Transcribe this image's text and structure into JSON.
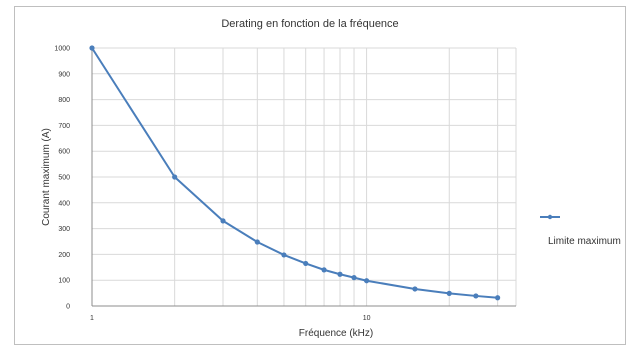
{
  "chart_data": {
    "type": "line",
    "title": "Derating en fonction de la fréquence",
    "xlabel": "Fréquence (kHz)",
    "ylabel": "Courant maximum (A)",
    "x_scale": "log",
    "xlim": [
      1,
      35
    ],
    "x_ticks": [
      1,
      10
    ],
    "ylim": [
      0,
      1000
    ],
    "y_ticks": [
      0,
      100,
      200,
      300,
      400,
      500,
      600,
      700,
      800,
      900,
      1000
    ],
    "grid": true,
    "legend_position": "right",
    "series": [
      {
        "name": "Limite maximum",
        "color": "#4a7ebb",
        "x": [
          1,
          2,
          3,
          4,
          5,
          6,
          7,
          8,
          9,
          10,
          15,
          20,
          25,
          30
        ],
        "y": [
          1000,
          500,
          330,
          248,
          198,
          165,
          140,
          123,
          110,
          98,
          66,
          49,
          39,
          32
        ]
      }
    ]
  }
}
